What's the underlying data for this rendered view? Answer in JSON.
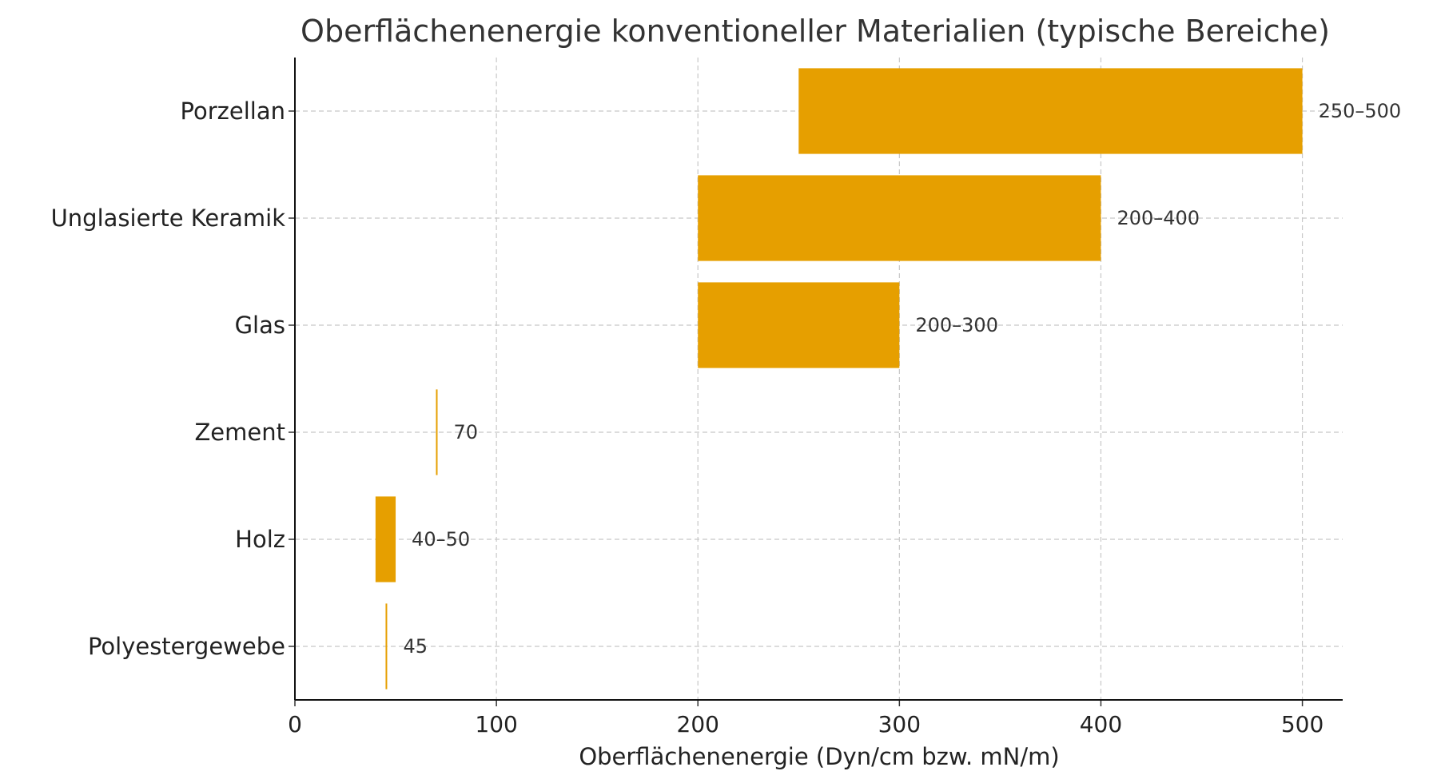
{
  "chart_data": {
    "type": "bar",
    "orientation": "horizontal",
    "title": "Oberflächenenergie konventioneller Materialien (typische Bereiche)",
    "xlabel": "Oberflächenenergie (Dyn/cm bzw. mN/m)",
    "ylabel": "",
    "xlim": [
      0,
      520
    ],
    "xticks": [
      0,
      100,
      200,
      300,
      400,
      500
    ],
    "grid": true,
    "bar_color": "#E69F00",
    "categories": [
      "Porzellan",
      "Unglasierte Keramik",
      "Glas",
      "Zement",
      "Holz",
      "Polyestergewebe"
    ],
    "ranges": [
      {
        "min": 250,
        "max": 500,
        "label": "250–500"
      },
      {
        "min": 200,
        "max": 400,
        "label": "200–400"
      },
      {
        "min": 200,
        "max": 300,
        "label": "200–300"
      },
      {
        "min": 70,
        "max": 70,
        "label": "70"
      },
      {
        "min": 40,
        "max": 50,
        "label": "40–50"
      },
      {
        "min": 45,
        "max": 45,
        "label": "45"
      }
    ]
  }
}
